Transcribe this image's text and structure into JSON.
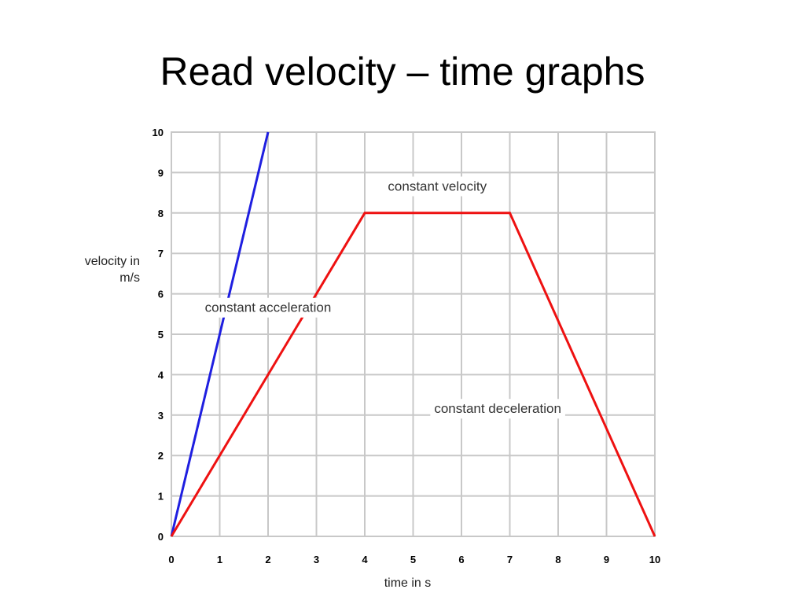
{
  "slide": {
    "title": "Read velocity – time graphs"
  },
  "chart_data": {
    "type": "line",
    "xlabel": "time in s",
    "ylabel_lines": [
      "velocity in",
      "m/s"
    ],
    "xlim": [
      0,
      10
    ],
    "ylim": [
      0,
      10
    ],
    "x_ticks": [
      0,
      1,
      2,
      3,
      4,
      5,
      6,
      7,
      8,
      9,
      10
    ],
    "y_ticks": [
      0,
      1,
      2,
      3,
      4,
      5,
      6,
      7,
      8,
      9,
      10
    ],
    "grid": true,
    "series": [
      {
        "color": "#1f1fe0",
        "points": [
          [
            0,
            0
          ],
          [
            2,
            10
          ]
        ]
      },
      {
        "color": "#ee1111",
        "points": [
          [
            0,
            0
          ],
          [
            4,
            8
          ],
          [
            7,
            8
          ],
          [
            10,
            0
          ]
        ]
      }
    ],
    "annotations": [
      {
        "text": "constant velocity",
        "x": 5.5,
        "y": 8.55
      },
      {
        "text": "constant acceleration",
        "x": 2.0,
        "y": 5.55
      },
      {
        "text": "constant deceleration",
        "x": 6.75,
        "y": 3.05
      }
    ]
  }
}
